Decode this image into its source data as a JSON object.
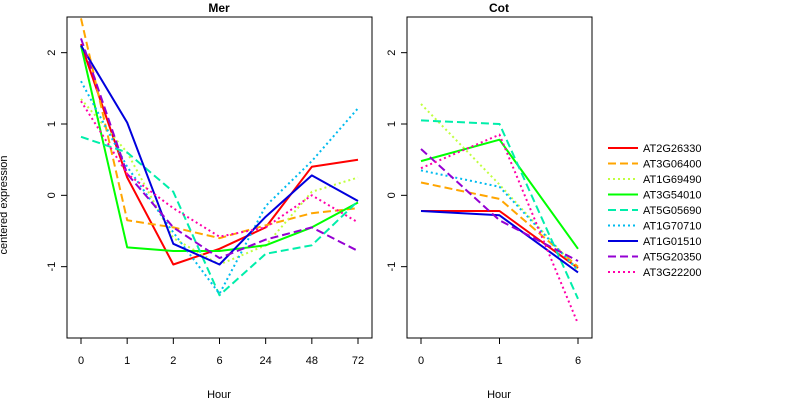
{
  "chart_data": [
    {
      "type": "line",
      "title": "Mer",
      "xlabel": "Hour",
      "ylabel": "centered expression",
      "categories": [
        "0",
        "1",
        "2",
        "6",
        "24",
        "48",
        "72"
      ],
      "ylim": [
        -2,
        2.5
      ],
      "yticks": [
        -1,
        0,
        1,
        2
      ],
      "series": [
        {
          "name": "AT2G26330",
          "color": "#ff0000",
          "dash": "solid",
          "values": [
            2.12,
            0.25,
            -0.97,
            -0.75,
            -0.45,
            0.4,
            0.5
          ]
        },
        {
          "name": "AT3G06400",
          "color": "#ffa500",
          "dash": "dashed",
          "values": [
            2.48,
            -0.35,
            -0.45,
            -0.6,
            -0.42,
            -0.25,
            -0.18
          ]
        },
        {
          "name": "AT1G69490",
          "color": "#c0ff3e",
          "dash": "dotted",
          "values": [
            1.35,
            0.6,
            -0.6,
            -0.97,
            -0.7,
            0.05,
            0.25
          ]
        },
        {
          "name": "AT3G54010",
          "color": "#00ff00",
          "dash": "solid",
          "values": [
            2.1,
            -0.73,
            -0.78,
            -0.78,
            -0.7,
            -0.45,
            -0.1
          ]
        },
        {
          "name": "AT5G05690",
          "color": "#00eeaa",
          "dash": "dashed",
          "values": [
            0.82,
            0.6,
            0.05,
            -1.4,
            -0.82,
            -0.7,
            -0.08
          ]
        },
        {
          "name": "AT1G70710",
          "color": "#00bbee",
          "dash": "dotted",
          "values": [
            1.6,
            0.4,
            -0.52,
            -1.38,
            -0.15,
            0.48,
            1.22
          ]
        },
        {
          "name": "AT1G01510",
          "color": "#0000dd",
          "dash": "solid",
          "values": [
            2.1,
            1.02,
            -0.68,
            -0.97,
            -0.3,
            0.28,
            -0.08
          ]
        },
        {
          "name": "AT5G20350",
          "color": "#9400d3",
          "dash": "dashed",
          "values": [
            2.2,
            0.3,
            -0.45,
            -0.88,
            -0.62,
            -0.45,
            -0.78
          ]
        },
        {
          "name": "AT3G22200",
          "color": "#ff00aa",
          "dash": "dotted",
          "values": [
            1.32,
            0.3,
            -0.18,
            -0.58,
            -0.45,
            0.0,
            -0.38
          ]
        }
      ]
    },
    {
      "type": "line",
      "title": "Cot",
      "xlabel": "Hour",
      "ylabel": "",
      "categories": [
        "0",
        "1",
        "6"
      ],
      "ylim": [
        -2,
        2.5
      ],
      "yticks": [
        -1,
        0,
        1,
        2
      ],
      "series": [
        {
          "name": "AT2G26330",
          "color": "#ff0000",
          "dash": "solid",
          "values": [
            -0.22,
            -0.22,
            -1.02
          ]
        },
        {
          "name": "AT3G06400",
          "color": "#ffa500",
          "dash": "dashed",
          "values": [
            0.18,
            -0.05,
            -1.0
          ]
        },
        {
          "name": "AT1G69490",
          "color": "#c0ff3e",
          "dash": "dotted",
          "values": [
            1.28,
            0.15,
            -1.05
          ]
        },
        {
          "name": "AT3G54010",
          "color": "#00ff00",
          "dash": "solid",
          "values": [
            0.48,
            0.78,
            -0.75
          ]
        },
        {
          "name": "AT5G05690",
          "color": "#00eeaa",
          "dash": "dashed",
          "values": [
            1.05,
            1.0,
            -1.45
          ]
        },
        {
          "name": "AT1G70710",
          "color": "#00bbee",
          "dash": "dotted",
          "values": [
            0.35,
            0.12,
            -1.05
          ]
        },
        {
          "name": "AT1G01510",
          "color": "#0000dd",
          "dash": "solid",
          "values": [
            -0.22,
            -0.28,
            -1.08
          ]
        },
        {
          "name": "AT5G20350",
          "color": "#9400d3",
          "dash": "dashed",
          "values": [
            0.65,
            -0.35,
            -0.92
          ]
        },
        {
          "name": "AT3G22200",
          "color": "#ff00aa",
          "dash": "dotted",
          "values": [
            0.38,
            0.85,
            -1.8
          ]
        }
      ]
    }
  ],
  "legend": {
    "placement": "right",
    "items": [
      {
        "label": "AT2G26330",
        "color": "#ff0000",
        "dash": "solid"
      },
      {
        "label": "AT3G06400",
        "color": "#ffa500",
        "dash": "dashed"
      },
      {
        "label": "AT1G69490",
        "color": "#c0ff3e",
        "dash": "dotted"
      },
      {
        "label": "AT3G54010",
        "color": "#00ff00",
        "dash": "solid"
      },
      {
        "label": "AT5G05690",
        "color": "#00eeaa",
        "dash": "dashed"
      },
      {
        "label": "AT1G70710",
        "color": "#00bbee",
        "dash": "dotted"
      },
      {
        "label": "AT1G01510",
        "color": "#0000dd",
        "dash": "solid"
      },
      {
        "label": "AT5G20350",
        "color": "#9400d3",
        "dash": "dashed"
      },
      {
        "label": "AT3G22200",
        "color": "#ff00aa",
        "dash": "dotted"
      }
    ]
  }
}
